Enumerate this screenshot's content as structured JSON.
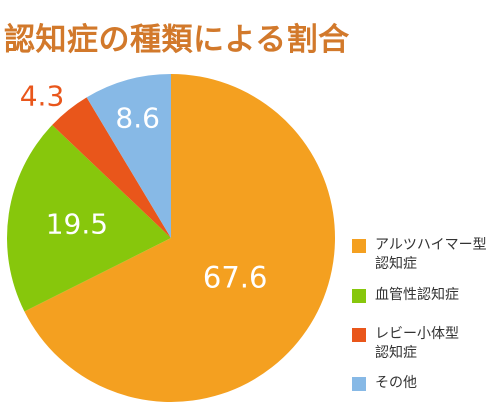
{
  "chart_data": {
    "type": "pie",
    "title": "認知症の種類による割合",
    "slices": [
      {
        "label": "アルツハイマー型\n認知症",
        "value": 67.6,
        "value_label": "67.6",
        "color": "#f4a020"
      },
      {
        "label": "血管性認知症",
        "value": 19.5,
        "value_label": "19.5",
        "color": "#87c70c"
      },
      {
        "label": "レビー小体型\n認知症",
        "value": 4.3,
        "value_label": "4.3",
        "color": "#e9561b"
      },
      {
        "label": "その他",
        "value": 8.6,
        "value_label": "8.6",
        "color": "#87b9e6"
      }
    ],
    "start": "12 o'clock",
    "direction": "clockwise",
    "legend": "right"
  }
}
